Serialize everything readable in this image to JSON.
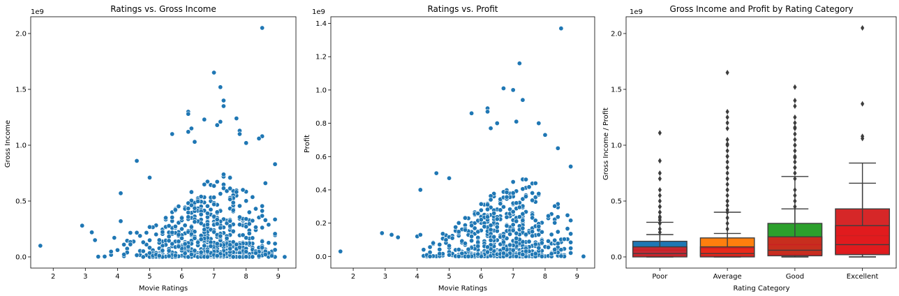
{
  "chart_data": [
    {
      "type": "scatter",
      "title": "Ratings vs. Gross Income",
      "xlabel": "Movie Ratings",
      "ylabel": "Gross Income",
      "y_offset_label": "1e9",
      "xlim": [
        1.3,
        9.55
      ],
      "ylim": [
        -0.1,
        2.15
      ],
      "x_ticks": [
        2,
        3,
        4,
        5,
        6,
        7,
        8,
        9
      ],
      "y_ticks": [
        0.0,
        0.5,
        1.0,
        1.5,
        2.0
      ],
      "color": "#1f77b4",
      "grid": false,
      "highlight_points": [
        {
          "x": 1.6,
          "y": 0.1
        },
        {
          "x": 2.9,
          "y": 0.28
        },
        {
          "x": 3.2,
          "y": 0.22
        },
        {
          "x": 3.3,
          "y": 0.15
        },
        {
          "x": 4.1,
          "y": 0.57
        },
        {
          "x": 4.1,
          "y": 0.32
        },
        {
          "x": 4.6,
          "y": 0.86
        },
        {
          "x": 5.0,
          "y": 0.71
        },
        {
          "x": 5.7,
          "y": 1.1
        },
        {
          "x": 6.2,
          "y": 1.3
        },
        {
          "x": 6.2,
          "y": 1.28
        },
        {
          "x": 6.2,
          "y": 1.12
        },
        {
          "x": 6.3,
          "y": 1.15
        },
        {
          "x": 6.4,
          "y": 1.03
        },
        {
          "x": 6.7,
          "y": 1.23
        },
        {
          "x": 7.0,
          "y": 1.65
        },
        {
          "x": 7.2,
          "y": 1.52
        },
        {
          "x": 7.3,
          "y": 1.4
        },
        {
          "x": 7.3,
          "y": 1.35
        },
        {
          "x": 7.2,
          "y": 1.21
        },
        {
          "x": 7.1,
          "y": 1.18
        },
        {
          "x": 7.7,
          "y": 1.24
        },
        {
          "x": 7.8,
          "y": 1.13
        },
        {
          "x": 7.8,
          "y": 1.1
        },
        {
          "x": 8.0,
          "y": 1.02
        },
        {
          "x": 8.5,
          "y": 2.05
        },
        {
          "x": 8.5,
          "y": 1.08
        },
        {
          "x": 8.4,
          "y": 1.06
        },
        {
          "x": 8.9,
          "y": 0.83
        },
        {
          "x": 8.6,
          "y": 0.66
        },
        {
          "x": 9.2,
          "y": 0.0
        },
        {
          "x": 8.8,
          "y": 0.01
        }
      ],
      "cluster": {
        "x_range": [
          3.4,
          8.9
        ],
        "peak_x": 6.8,
        "spread": 1.1,
        "count": 640
      }
    },
    {
      "type": "scatter",
      "title": "Ratings vs. Profit",
      "xlabel": "Movie Ratings",
      "ylabel": "Profit",
      "y_offset_label": "1e9",
      "xlim": [
        1.3,
        9.55
      ],
      "ylim": [
        -0.07,
        1.44
      ],
      "x_ticks": [
        2,
        3,
        4,
        5,
        6,
        7,
        8,
        9
      ],
      "y_ticks": [
        0.0,
        0.2,
        0.4,
        0.6,
        0.8,
        1.0,
        1.2,
        1.4
      ],
      "color": "#1f77b4",
      "grid": false,
      "highlight_points": [
        {
          "x": 1.6,
          "y": 0.03
        },
        {
          "x": 2.9,
          "y": 0.14
        },
        {
          "x": 3.2,
          "y": 0.13
        },
        {
          "x": 4.1,
          "y": 0.4
        },
        {
          "x": 4.6,
          "y": 0.5
        },
        {
          "x": 5.0,
          "y": 0.47
        },
        {
          "x": 5.7,
          "y": 0.86
        },
        {
          "x": 6.2,
          "y": 0.89
        },
        {
          "x": 6.2,
          "y": 0.87
        },
        {
          "x": 6.3,
          "y": 0.77
        },
        {
          "x": 6.5,
          "y": 0.8
        },
        {
          "x": 6.7,
          "y": 1.01
        },
        {
          "x": 7.0,
          "y": 1.0
        },
        {
          "x": 7.2,
          "y": 1.16
        },
        {
          "x": 7.3,
          "y": 0.94
        },
        {
          "x": 7.1,
          "y": 0.81
        },
        {
          "x": 7.8,
          "y": 0.8
        },
        {
          "x": 8.0,
          "y": 0.73
        },
        {
          "x": 8.5,
          "y": 1.37
        },
        {
          "x": 8.4,
          "y": 0.65
        },
        {
          "x": 8.8,
          "y": 0.54
        },
        {
          "x": 9.2,
          "y": 0.0
        }
      ],
      "cluster": {
        "x_range": [
          3.4,
          8.9
        ],
        "peak_x": 6.8,
        "spread": 1.1,
        "count": 640
      }
    },
    {
      "type": "box",
      "title": "Gross Income and Profit by Rating Category",
      "xlabel": "Rating Category",
      "ylabel": "Gross Income / Profit",
      "y_offset_label": "1e9",
      "ylim": [
        -0.1,
        2.15
      ],
      "y_ticks": [
        0.0,
        0.5,
        1.0,
        1.5,
        2.0
      ],
      "categories": [
        "Poor",
        "Average",
        "Good",
        "Excellent"
      ],
      "grid": false,
      "series": [
        {
          "stat": "gross",
          "colors": [
            "#1f77b4",
            "#ff7f0e",
            "#2ca02c",
            "#d62728"
          ],
          "boxes": [
            {
              "q1": 0.01,
              "median": 0.06,
              "q3": 0.14,
              "whisker_low": 0.0,
              "whisker_high": 0.31,
              "fliers": [
                0.33,
                0.36,
                0.4,
                0.45,
                0.5,
                0.55,
                0.6,
                0.7,
                0.75,
                0.86,
                1.11
              ]
            },
            {
              "q1": 0.01,
              "median": 0.08,
              "q3": 0.17,
              "whisker_low": 0.0,
              "whisker_high": 0.4,
              "fliers": [
                0.42,
                0.46,
                0.5,
                0.55,
                0.6,
                0.65,
                0.7,
                0.75,
                0.8,
                0.85,
                0.9,
                0.95,
                1.0,
                1.05,
                1.15,
                1.2,
                1.25,
                1.3,
                1.65
              ]
            },
            {
              "q1": 0.02,
              "median": 0.11,
              "q3": 0.3,
              "whisker_low": 0.0,
              "whisker_high": 0.72,
              "fliers": [
                0.75,
                0.8,
                0.85,
                0.9,
                0.95,
                1.0,
                1.05,
                1.1,
                1.15,
                1.2,
                1.25,
                1.35,
                1.4,
                1.52
              ]
            },
            {
              "q1": 0.03,
              "median": 0.19,
              "q3": 0.43,
              "whisker_low": 0.0,
              "whisker_high": 0.84,
              "fliers": [
                1.06,
                1.08,
                2.05
              ]
            }
          ]
        },
        {
          "stat": "profit",
          "colors": [
            "#e31a1c",
            "#e31a1c",
            "#e31a1c",
            "#e31a1c"
          ],
          "boxes": [
            {
              "q1": 0.0,
              "median": 0.03,
              "q3": 0.09,
              "whisker_low": 0.0,
              "whisker_high": 0.2,
              "fliers": [
                0.22,
                0.25,
                0.3,
                0.35,
                0.4,
                0.45
              ]
            },
            {
              "q1": 0.0,
              "median": 0.03,
              "q3": 0.09,
              "whisker_low": 0.0,
              "whisker_high": 0.21,
              "fliers": [
                0.25,
                0.3,
                0.35,
                0.4,
                0.5,
                0.6,
                0.7,
                0.8,
                0.9,
                1.01
              ]
            },
            {
              "q1": 0.01,
              "median": 0.06,
              "q3": 0.18,
              "whisker_low": 0.0,
              "whisker_high": 0.43,
              "fliers": [
                0.45,
                0.5,
                0.55,
                0.6,
                0.7,
                0.8,
                0.89,
                1.0,
                1.16
              ]
            },
            {
              "q1": 0.02,
              "median": 0.11,
              "q3": 0.28,
              "whisker_low": 0.0,
              "whisker_high": 0.66,
              "fliers": [
                1.37
              ]
            }
          ]
        }
      ]
    }
  ]
}
